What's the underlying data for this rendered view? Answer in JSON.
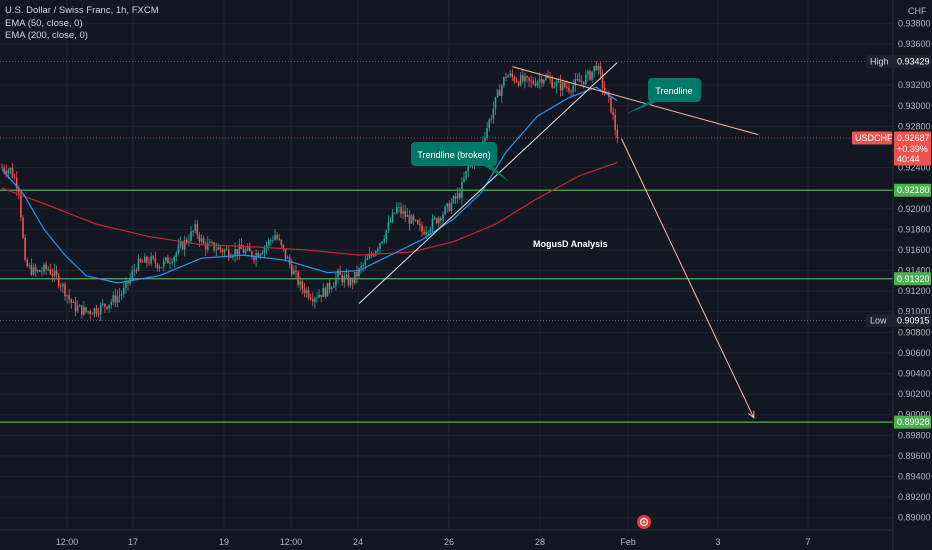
{
  "header": {
    "symbol_line": "U.S. Dollar / Swiss Franc, 1h, FXCM",
    "ema50": "EMA (50, close, 0)",
    "ema200": "EMA (200, close, 0)"
  },
  "currency": "CHF",
  "colors": {
    "background": "#131722",
    "grid": "#1f2431",
    "up": "#26a69a",
    "down": "#ef5350",
    "ema50": "#2196f3",
    "ema200": "#c62828",
    "level": "#4caf50",
    "trend": "#ffb899",
    "callout": "#00796b",
    "price_tag": "#ef5350"
  },
  "annotations": {
    "trendline_broken": "Trendline (broken)",
    "trendline": "Trendline",
    "watermark": "MogusD Analysis"
  },
  "tags": {
    "high": {
      "label": "High",
      "value": "0.93429"
    },
    "low": {
      "label": "Low",
      "value": "0.90915"
    },
    "last": {
      "symbol": "USDCHF",
      "value": "0.92687",
      "change": "+0.39%",
      "countdown": "40:44"
    },
    "levels": [
      "0.92180",
      "0.91320",
      "0.89928"
    ]
  },
  "chart_data": {
    "type": "candlestick",
    "timeframe": "1h",
    "y_ticks": [
      "0.93800",
      "0.93600",
      "0.93200",
      "0.93000",
      "0.92800",
      "0.92400",
      "0.92000",
      "0.91800",
      "0.91600",
      "0.91400",
      "0.91200",
      "0.91000",
      "0.90800",
      "0.90600",
      "0.90400",
      "0.90200",
      "0.90000",
      "0.89800",
      "0.89600",
      "0.89400",
      "0.89200",
      "0.89000"
    ],
    "y_range": [
      0.889,
      0.9393
    ],
    "x_ticks": [
      "12:00",
      "17",
      "19",
      "12:00",
      "24",
      "26",
      "28",
      "Feb",
      "3",
      "7"
    ],
    "horizontal_levels": [
      0.9218,
      0.9132,
      0.89928
    ],
    "high": 0.93429,
    "low": 0.90915,
    "last": 0.92687,
    "price_anchors": [
      [
        0,
        0.924
      ],
      [
        4,
        0.9238
      ],
      [
        8,
        0.922
      ],
      [
        11,
        0.9145
      ],
      [
        16,
        0.9138
      ],
      [
        22,
        0.9142
      ],
      [
        28,
        0.9128
      ],
      [
        34,
        0.9105
      ],
      [
        40,
        0.91
      ],
      [
        46,
        0.9103
      ],
      [
        52,
        0.911
      ],
      [
        58,
        0.912
      ],
      [
        64,
        0.9145
      ],
      [
        70,
        0.915
      ],
      [
        76,
        0.9145
      ],
      [
        82,
        0.9155
      ],
      [
        88,
        0.917
      ],
      [
        92,
        0.918
      ],
      [
        96,
        0.9165
      ],
      [
        102,
        0.9162
      ],
      [
        108,
        0.9158
      ],
      [
        114,
        0.916
      ],
      [
        120,
        0.9155
      ],
      [
        126,
        0.9165
      ],
      [
        130,
        0.9175
      ],
      [
        136,
        0.915
      ],
      [
        142,
        0.9125
      ],
      [
        148,
        0.9115
      ],
      [
        154,
        0.912
      ],
      [
        160,
        0.9135
      ],
      [
        166,
        0.9128
      ],
      [
        172,
        0.9145
      ],
      [
        176,
        0.9155
      ],
      [
        182,
        0.9175
      ],
      [
        188,
        0.92
      ],
      [
        194,
        0.919
      ],
      [
        200,
        0.9178
      ],
      [
        206,
        0.9188
      ],
      [
        212,
        0.92
      ],
      [
        218,
        0.9215
      ],
      [
        222,
        0.924
      ],
      [
        228,
        0.9262
      ],
      [
        232,
        0.9285
      ],
      [
        236,
        0.931
      ],
      [
        240,
        0.933
      ],
      [
        246,
        0.9325
      ],
      [
        252,
        0.9322
      ],
      [
        258,
        0.9328
      ],
      [
        264,
        0.932
      ],
      [
        270,
        0.9318
      ],
      [
        276,
        0.9324
      ],
      [
        280,
        0.933
      ],
      [
        283,
        0.934
      ],
      [
        286,
        0.932
      ],
      [
        290,
        0.9298
      ],
      [
        293,
        0.9268
      ]
    ],
    "ema50_anchors": [
      [
        0,
        0.9238
      ],
      [
        10,
        0.9215
      ],
      [
        20,
        0.918
      ],
      [
        30,
        0.9155
      ],
      [
        40,
        0.9135
      ],
      [
        55,
        0.9128
      ],
      [
        75,
        0.9135
      ],
      [
        95,
        0.9152
      ],
      [
        115,
        0.9155
      ],
      [
        135,
        0.915
      ],
      [
        155,
        0.9138
      ],
      [
        170,
        0.914
      ],
      [
        185,
        0.9155
      ],
      [
        200,
        0.917
      ],
      [
        215,
        0.919
      ],
      [
        228,
        0.9215
      ],
      [
        240,
        0.9255
      ],
      [
        255,
        0.929
      ],
      [
        270,
        0.9308
      ],
      [
        283,
        0.9318
      ],
      [
        293,
        0.9305
      ]
    ],
    "ema200_anchors": [
      [
        0,
        0.922
      ],
      [
        20,
        0.9205
      ],
      [
        45,
        0.9185
      ],
      [
        70,
        0.9173
      ],
      [
        95,
        0.9165
      ],
      [
        120,
        0.9163
      ],
      [
        145,
        0.916
      ],
      [
        170,
        0.9155
      ],
      [
        195,
        0.9158
      ],
      [
        215,
        0.9168
      ],
      [
        235,
        0.9185
      ],
      [
        255,
        0.921
      ],
      [
        275,
        0.9232
      ],
      [
        293,
        0.9245
      ]
    ],
    "trendline_rising": [
      [
        170,
        0.9108
      ],
      [
        293,
        0.9342
      ]
    ],
    "trendline_falling": [
      [
        243,
        0.9338
      ],
      [
        360,
        0.9272
      ]
    ],
    "projection": [
      [
        295,
        0.9268
      ],
      [
        358,
        0.8997
      ]
    ]
  }
}
